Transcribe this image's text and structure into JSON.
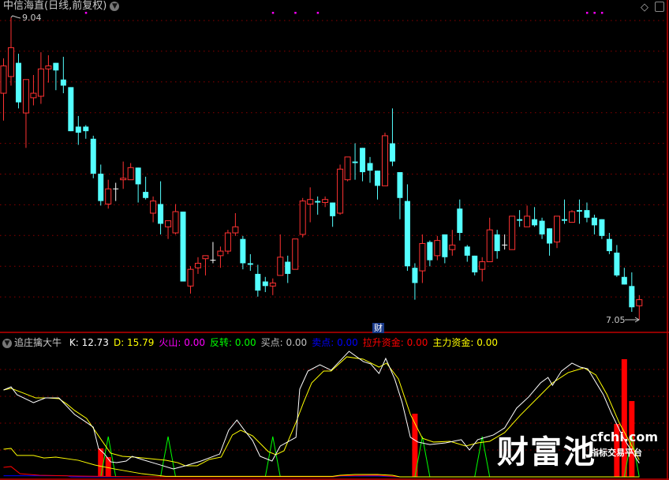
{
  "header": {
    "title": "中信海直(日线,前复权)",
    "dropdown_icon": "chevron-down-circle-icon"
  },
  "toolbar_right": {
    "icons": [
      "diamond-icon",
      "panel-toggle-icon"
    ]
  },
  "main_chart": {
    "high_label": "9.04",
    "low_label": "7.05",
    "event_badge": "财",
    "event_badge_index": 50,
    "signal_dot_indices": [
      11,
      36,
      39,
      42,
      78,
      79,
      80
    ],
    "colors": {
      "up": "#ff3232",
      "down": "#54ffff",
      "flat": "#ffffff",
      "grid": "#8b0000",
      "signal": "#ff00ff"
    },
    "candles_ohlc": [
      [
        8.54,
        8.77,
        8.36,
        8.72
      ],
      [
        8.65,
        9.04,
        8.59,
        8.84
      ],
      [
        8.74,
        8.8,
        8.44,
        8.48
      ],
      [
        8.41,
        8.63,
        8.18,
        8.63
      ],
      [
        8.51,
        8.66,
        8.46,
        8.54
      ],
      [
        8.52,
        8.81,
        8.47,
        8.7
      ],
      [
        8.7,
        8.79,
        8.61,
        8.72
      ],
      [
        8.74,
        8.74,
        8.56,
        8.69
      ],
      [
        8.63,
        8.78,
        8.54,
        8.59
      ],
      [
        8.58,
        8.58,
        8.29,
        8.29
      ],
      [
        8.32,
        8.39,
        8.2,
        8.28
      ],
      [
        8.32,
        8.33,
        8.24,
        8.29
      ],
      [
        8.24,
        8.26,
        7.98,
        8.01
      ],
      [
        8.01,
        8.07,
        7.8,
        7.83
      ],
      [
        7.81,
        7.97,
        7.78,
        7.91
      ],
      [
        7.91,
        7.95,
        7.83,
        7.91
      ],
      [
        7.97,
        8.09,
        7.91,
        7.98
      ],
      [
        7.97,
        8.08,
        7.97,
        8.05
      ],
      [
        8.05,
        8.05,
        7.82,
        7.94
      ],
      [
        7.89,
        7.99,
        7.84,
        7.85
      ],
      [
        7.75,
        7.86,
        7.69,
        7.83
      ],
      [
        7.81,
        7.96,
        7.61,
        7.68
      ],
      [
        7.66,
        7.7,
        7.58,
        7.7
      ],
      [
        7.62,
        7.81,
        7.61,
        7.76
      ],
      [
        7.76,
        7.76,
        7.3,
        7.3
      ],
      [
        7.27,
        7.4,
        7.22,
        7.38
      ],
      [
        7.39,
        7.46,
        7.35,
        7.42
      ],
      [
        7.45,
        7.47,
        7.34,
        7.47
      ],
      [
        7.44,
        7.56,
        7.42,
        7.44
      ],
      [
        7.47,
        7.53,
        7.39,
        7.5
      ],
      [
        7.5,
        7.64,
        7.48,
        7.62
      ],
      [
        7.62,
        7.75,
        7.6,
        7.66
      ],
      [
        7.58,
        7.6,
        7.38,
        7.42
      ],
      [
        7.42,
        7.48,
        7.37,
        7.41
      ],
      [
        7.35,
        7.41,
        7.2,
        7.24
      ],
      [
        7.3,
        7.33,
        7.23,
        7.27
      ],
      [
        7.27,
        7.32,
        7.21,
        7.29
      ],
      [
        7.34,
        7.61,
        7.34,
        7.46
      ],
      [
        7.43,
        7.47,
        7.29,
        7.35
      ],
      [
        7.38,
        7.58,
        7.38,
        7.58
      ],
      [
        7.61,
        7.85,
        7.59,
        7.83
      ],
      [
        7.81,
        7.92,
        7.69,
        7.84
      ],
      [
        7.83,
        7.86,
        7.74,
        7.82
      ],
      [
        7.82,
        7.86,
        7.79,
        7.84
      ],
      [
        7.82,
        7.82,
        7.66,
        7.73
      ],
      [
        7.75,
        8.07,
        7.74,
        8.04
      ],
      [
        7.97,
        8.12,
        7.96,
        8.12
      ],
      [
        8.09,
        8.21,
        7.97,
        8.08
      ],
      [
        8.18,
        8.18,
        7.96,
        8.02
      ],
      [
        8.08,
        8.12,
        7.95,
        8.03
      ],
      [
        8.03,
        8.03,
        7.84,
        7.93
      ],
      [
        7.93,
        8.28,
        7.93,
        8.26
      ],
      [
        8.21,
        8.44,
        8.06,
        8.09
      ],
      [
        8.02,
        8.02,
        7.71,
        7.85
      ],
      [
        7.83,
        7.94,
        7.37,
        7.4
      ],
      [
        7.39,
        7.42,
        7.18,
        7.29
      ],
      [
        7.37,
        7.61,
        7.29,
        7.55
      ],
      [
        7.56,
        7.57,
        7.4,
        7.44
      ],
      [
        7.47,
        7.6,
        7.44,
        7.57
      ],
      [
        7.61,
        7.61,
        7.42,
        7.46
      ],
      [
        7.51,
        7.64,
        7.47,
        7.54
      ],
      [
        7.78,
        7.84,
        7.57,
        7.62
      ],
      [
        7.53,
        7.54,
        7.43,
        7.47
      ],
      [
        7.47,
        7.47,
        7.34,
        7.36
      ],
      [
        7.38,
        7.46,
        7.3,
        7.43
      ],
      [
        7.43,
        7.72,
        7.43,
        7.64
      ],
      [
        7.61,
        7.64,
        7.45,
        7.5
      ],
      [
        7.54,
        7.61,
        7.51,
        7.54
      ],
      [
        7.51,
        7.73,
        7.51,
        7.73
      ],
      [
        7.71,
        7.77,
        7.66,
        7.7
      ],
      [
        7.66,
        7.8,
        7.66,
        7.73
      ],
      [
        7.71,
        7.79,
        7.66,
        7.67
      ],
      [
        7.7,
        7.72,
        7.58,
        7.61
      ],
      [
        7.65,
        7.65,
        7.47,
        7.55
      ],
      [
        7.56,
        7.73,
        7.52,
        7.73
      ],
      [
        7.71,
        7.84,
        7.68,
        7.7
      ],
      [
        7.69,
        7.77,
        7.69,
        7.76
      ],
      [
        7.77,
        7.84,
        7.68,
        7.76
      ],
      [
        7.77,
        7.82,
        7.69,
        7.72
      ],
      [
        7.72,
        7.74,
        7.61,
        7.67
      ],
      [
        7.71,
        7.71,
        7.58,
        7.6
      ],
      [
        7.58,
        7.62,
        7.48,
        7.5
      ],
      [
        7.49,
        7.54,
        7.33,
        7.34
      ],
      [
        7.33,
        7.39,
        7.28,
        7.28
      ],
      [
        7.27,
        7.36,
        7.1,
        7.13
      ],
      [
        7.14,
        7.21,
        7.05,
        7.18
      ]
    ]
  },
  "indicator": {
    "name": "追庄擒大牛",
    "dropdown_icon": "chevron-down-circle-icon",
    "values": [
      {
        "label": "K",
        "value": "12.73",
        "color": "#ffffff"
      },
      {
        "label": "D",
        "value": "15.79",
        "color": "#ffff00"
      },
      {
        "label": "火山",
        "value": "0.00",
        "color": "#ff00ff"
      },
      {
        "label": "反转",
        "value": "0.00",
        "color": "#00ff00"
      },
      {
        "label": "买点",
        "value": "0.00",
        "color": "#c0c0c0"
      },
      {
        "label": "卖点",
        "value": "0.00",
        "color": "#0000ff"
      },
      {
        "label": "拉升资金",
        "value": "0.00",
        "color": "#ff0000"
      },
      {
        "label": "主力资金",
        "value": "0.00",
        "color": "#ffff00"
      }
    ],
    "K_points": [
      [
        0,
        80.9
      ],
      [
        1,
        83.8
      ],
      [
        1.8,
        76.5
      ],
      [
        4,
        69.1
      ],
      [
        5.6,
        73.5
      ],
      [
        7.4,
        73.5
      ],
      [
        9.5,
        58.1
      ],
      [
        11.1,
        50.7
      ],
      [
        12,
        46.3
      ],
      [
        12.7,
        26.5
      ],
      [
        13.5,
        21.3
      ],
      [
        14.3,
        14
      ],
      [
        15.1,
        13.2
      ],
      [
        16.4,
        14.7
      ],
      [
        17.2,
        19.1
      ],
      [
        18.5,
        16.2
      ],
      [
        20.6,
        11.8
      ],
      [
        22.7,
        7.4
      ],
      [
        24.3,
        10.3
      ],
      [
        26.4,
        14.7
      ],
      [
        28.9,
        21.3
      ],
      [
        30.1,
        43.4
      ],
      [
        31.2,
        52.9
      ],
      [
        32.2,
        43.4
      ],
      [
        33.3,
        33.8
      ],
      [
        34.3,
        19.1
      ],
      [
        35.9,
        14.7
      ],
      [
        37,
        28.7
      ],
      [
        39.1,
        36.8
      ],
      [
        39.6,
        81.6
      ],
      [
        40.7,
        98.5
      ],
      [
        42.3,
        104.4
      ],
      [
        43.8,
        99.3
      ],
      [
        46.2,
        116.9
      ],
      [
        48.1,
        107.4
      ],
      [
        49.1,
        105.1
      ],
      [
        50.2,
        96.3
      ],
      [
        51.1,
        110.3
      ],
      [
        52.3,
        91.2
      ],
      [
        53.3,
        69.1
      ],
      [
        54.4,
        36.8
      ],
      [
        55.4,
        32.4
      ],
      [
        57,
        30.1
      ],
      [
        59.1,
        31.6
      ],
      [
        61.2,
        34.6
      ],
      [
        62.3,
        25
      ],
      [
        63.4,
        34.6
      ],
      [
        65.5,
        39
      ],
      [
        67,
        45.6
      ],
      [
        68.6,
        64
      ],
      [
        70.2,
        74.3
      ],
      [
        71.8,
        87.5
      ],
      [
        72.8,
        92.6
      ],
      [
        73.4,
        85.3
      ],
      [
        74.6,
        98.5
      ],
      [
        76,
        105.9
      ],
      [
        77.1,
        102.2
      ],
      [
        78.1,
        100.7
      ],
      [
        80.2,
        76.5
      ],
      [
        81.3,
        58.8
      ],
      [
        82.9,
        36
      ],
      [
        85,
        12.73
      ]
    ],
    "D_points": [
      [
        0,
        80.9
      ],
      [
        1,
        82.4
      ],
      [
        2.7,
        77.9
      ],
      [
        4.3,
        73.5
      ],
      [
        5.9,
        73.5
      ],
      [
        7.4,
        72.8
      ],
      [
        8.5,
        67.6
      ],
      [
        9.5,
        61.8
      ],
      [
        11.1,
        54.4
      ],
      [
        12.7,
        38.2
      ],
      [
        14.3,
        22.1
      ],
      [
        15.9,
        19.1
      ],
      [
        17.5,
        18.4
      ],
      [
        19.6,
        16.9
      ],
      [
        21.7,
        15.4
      ],
      [
        23.3,
        13.2
      ],
      [
        24.3,
        10.3
      ],
      [
        25.9,
        10.3
      ],
      [
        27.5,
        16.2
      ],
      [
        29.1,
        18.4
      ],
      [
        30.6,
        39
      ],
      [
        31.7,
        43.4
      ],
      [
        33.3,
        38.2
      ],
      [
        35.4,
        23.5
      ],
      [
        36.4,
        20.6
      ],
      [
        37.5,
        24.3
      ],
      [
        39.1,
        50.7
      ],
      [
        40.1,
        69.1
      ],
      [
        41.2,
        87.5
      ],
      [
        42.8,
        98.5
      ],
      [
        43.8,
        98.5
      ],
      [
        45.9,
        111.8
      ],
      [
        48.1,
        109.6
      ],
      [
        50.2,
        102.2
      ],
      [
        51.2,
        105.9
      ],
      [
        52.8,
        91.2
      ],
      [
        54.4,
        58.1
      ],
      [
        56,
        36
      ],
      [
        57.5,
        32.4
      ],
      [
        59.7,
        33.1
      ],
      [
        61.8,
        28.7
      ],
      [
        63.4,
        31.6
      ],
      [
        65,
        33.1
      ],
      [
        67,
        41.2
      ],
      [
        69.1,
        57.4
      ],
      [
        71.3,
        72.8
      ],
      [
        73.4,
        87.5
      ],
      [
        75.5,
        97.1
      ],
      [
        77.6,
        101.5
      ],
      [
        79.2,
        94.9
      ],
      [
        80.7,
        76.5
      ],
      [
        82.3,
        50.7
      ],
      [
        85,
        15.79
      ]
    ],
    "main_fund_points": [
      [
        0,
        25.7
      ],
      [
        1,
        26.5
      ],
      [
        1.8,
        19.9
      ],
      [
        4,
        19.9
      ],
      [
        5.4,
        17.6
      ],
      [
        7,
        18.4
      ],
      [
        10,
        15.4
      ],
      [
        12.2,
        11
      ],
      [
        14.8,
        7.4
      ],
      [
        18.5,
        2.9
      ],
      [
        21.7,
        0.5
      ],
      [
        44,
        0.5
      ],
      [
        45,
        1.5
      ],
      [
        47,
        2.2
      ],
      [
        50,
        2.2
      ],
      [
        52,
        1.5
      ],
      [
        53,
        0
      ],
      [
        85,
        0
      ]
    ],
    "pull_fund_points": [
      [
        0,
        8.8
      ],
      [
        1,
        9.6
      ],
      [
        2.2,
        2.9
      ],
      [
        4.8,
        1.5
      ],
      [
        10,
        0.7
      ],
      [
        18.5,
        0
      ],
      [
        44,
        0
      ],
      [
        45,
        1
      ],
      [
        50,
        1.5
      ],
      [
        53,
        0
      ],
      [
        85,
        0
      ]
    ],
    "sell_points": [
      [
        0,
        1
      ],
      [
        8.5,
        1
      ],
      [
        9,
        0
      ],
      [
        44,
        0
      ],
      [
        45,
        0.7
      ],
      [
        50,
        0.7
      ],
      [
        53,
        0
      ],
      [
        85,
        0
      ]
    ],
    "reversal_spike_indices": [
      14,
      22,
      36,
      56,
      64,
      84
    ],
    "reversal_spike_value": 37.5,
    "volcano_bars": [
      [
        13,
        26.5
      ],
      [
        14,
        18.4
      ],
      [
        55,
        58.8
      ],
      [
        82,
        49.3
      ],
      [
        83,
        109.6
      ],
      [
        84,
        70.6
      ]
    ]
  },
  "watermark": {
    "brand": "财富池",
    "url": "cfchi.com",
    "tagline": "指标交易平台"
  }
}
